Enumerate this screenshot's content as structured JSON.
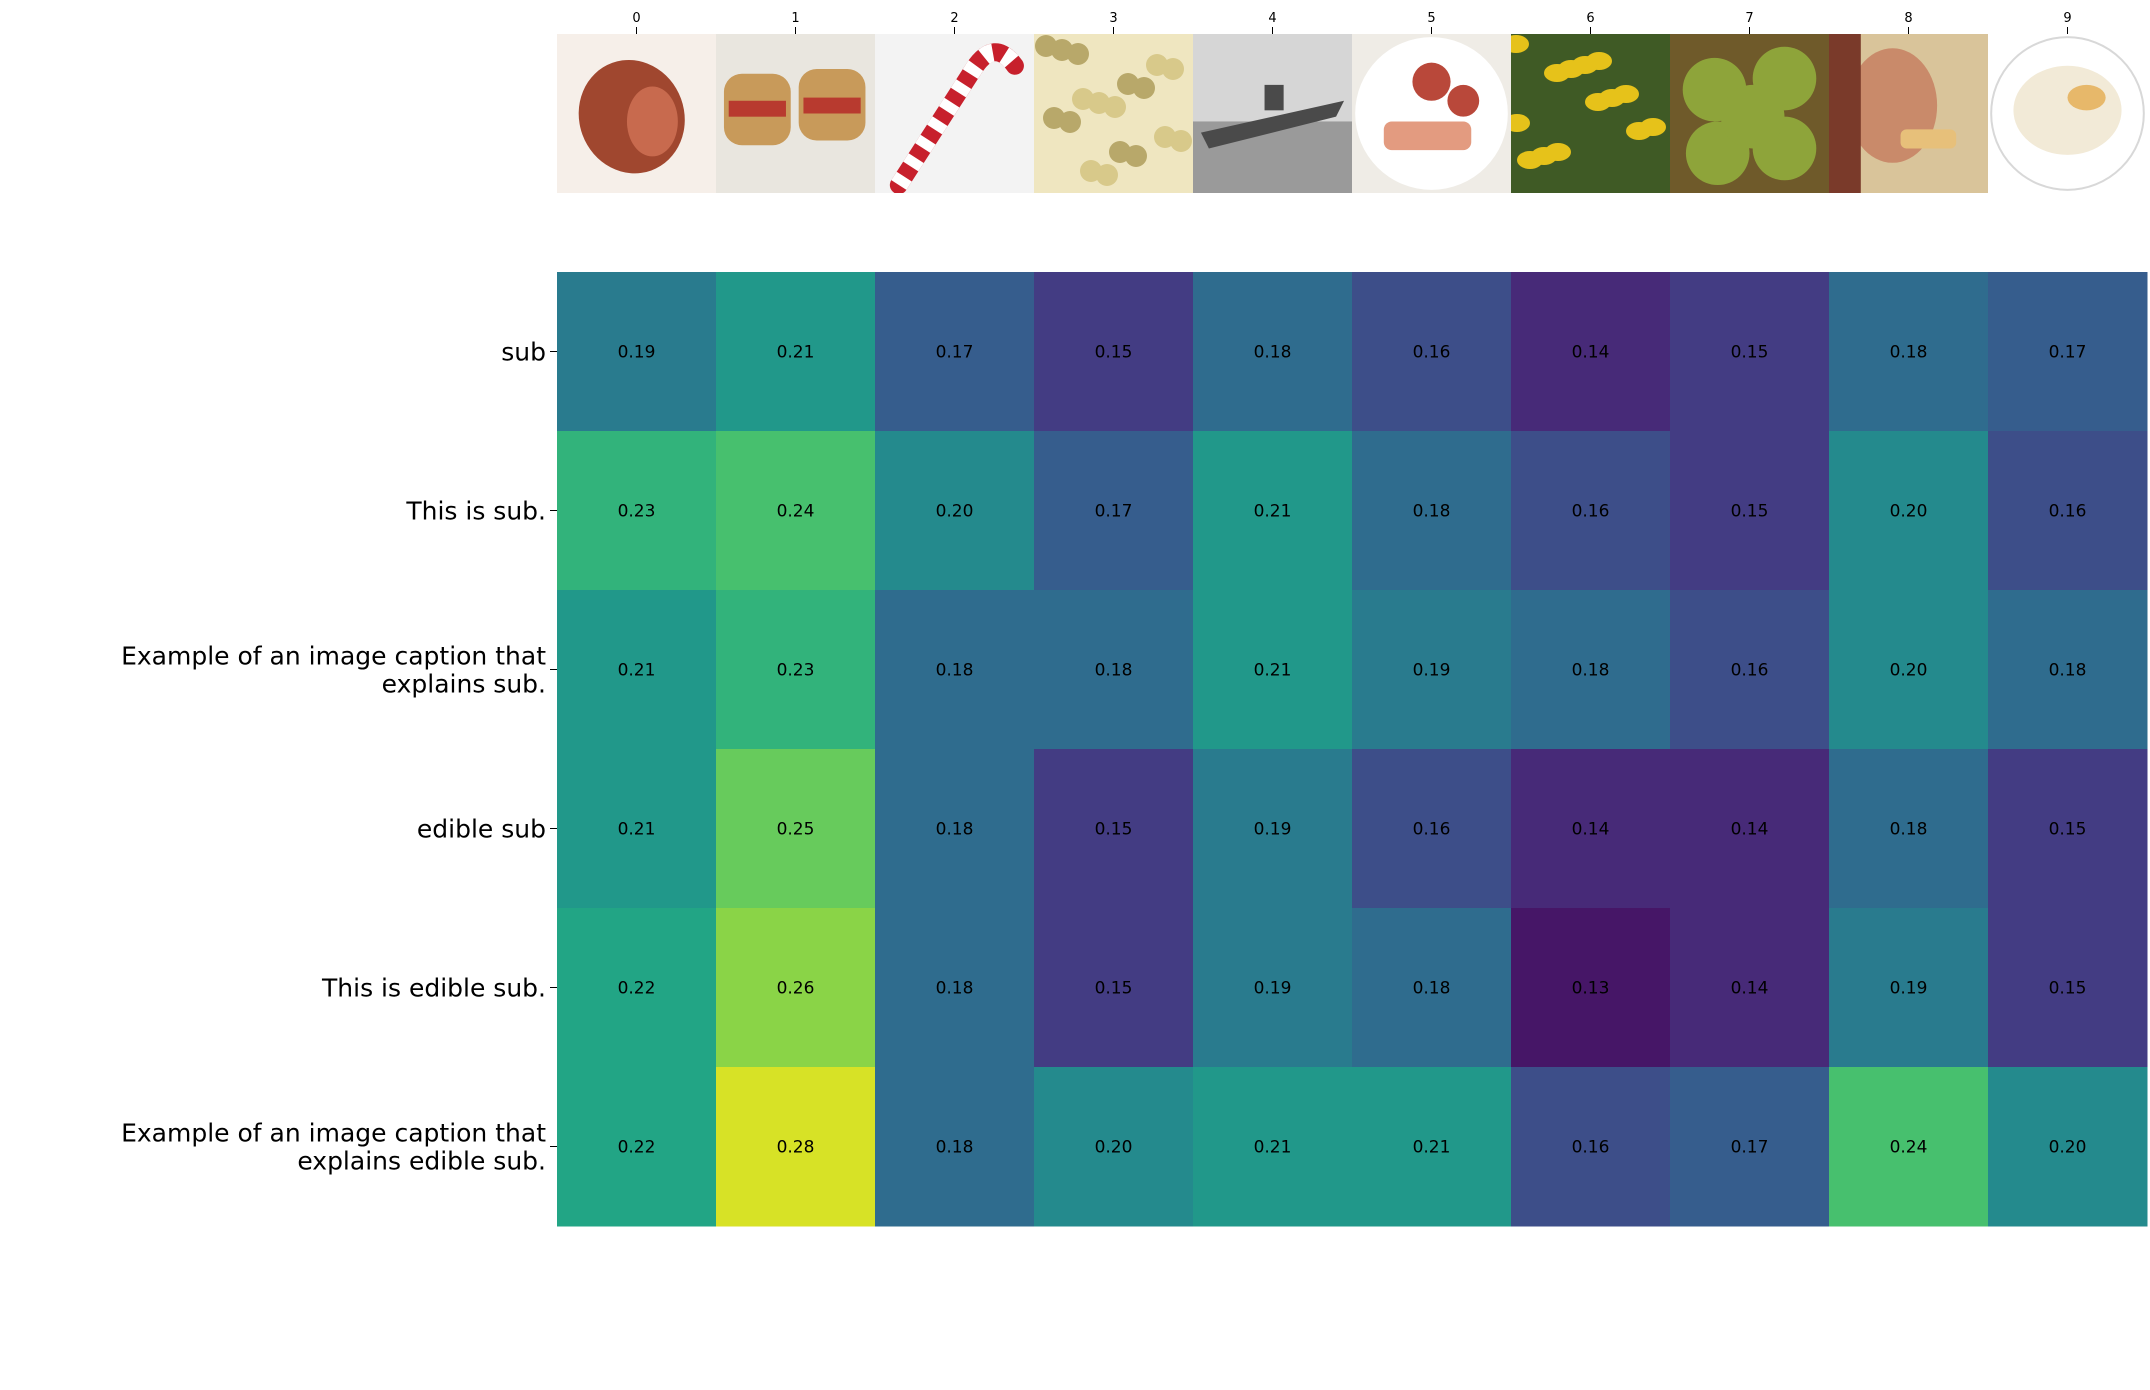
{
  "chart_data": {
    "type": "heatmap",
    "colormap": "viridis",
    "value_format": "2 decimals",
    "color_range": [
      0.12,
      0.29
    ],
    "x": {
      "tick_labels": [
        "0",
        "1",
        "2",
        "3",
        "4",
        "5",
        "6",
        "7",
        "8",
        "9"
      ],
      "images": [
        {
          "index": 0,
          "icon": "ham-thumbnail",
          "colors": [
            "#a0472f",
            "#c86a4e",
            "#f6efe9"
          ]
        },
        {
          "index": 1,
          "icon": "sub-sandwich-thumbnail",
          "colors": [
            "#c89a5a",
            "#b83a2f",
            "#e9e6df"
          ]
        },
        {
          "index": 2,
          "icon": "candy-cane-thumbnail",
          "colors": [
            "#c7202c",
            "#ffffff",
            "#f3f3f3"
          ]
        },
        {
          "index": 3,
          "icon": "pasta-thumbnail",
          "colors": [
            "#d8c98a",
            "#b8a86a",
            "#efe6c0"
          ]
        },
        {
          "index": 4,
          "icon": "submarine-thumbnail",
          "colors": [
            "#4a4a4a",
            "#9a9a9a",
            "#d6d6d6"
          ]
        },
        {
          "index": 5,
          "icon": "cured-meat-plate-thumbnail",
          "colors": [
            "#b9483a",
            "#e39b80",
            "#efece6"
          ]
        },
        {
          "index": 6,
          "icon": "yellow-flowers-thumbnail",
          "colors": [
            "#e6c21a",
            "#5d7a2d",
            "#3f5a25"
          ]
        },
        {
          "index": 7,
          "icon": "apples-basket-thumbnail",
          "colors": [
            "#8ea43a",
            "#6f5a2a",
            "#4d3a1d"
          ]
        },
        {
          "index": 8,
          "icon": "person-eating-thumbnail",
          "colors": [
            "#c98a6a",
            "#7a3a2a",
            "#d9c49a"
          ]
        },
        {
          "index": 9,
          "icon": "sauerkraut-plate-thumbnail",
          "colors": [
            "#f2ead7",
            "#e7b86a",
            "#ffffff"
          ]
        }
      ]
    },
    "y": {
      "tick_labels": [
        "sub",
        "This is sub.",
        "Example of an image caption that explains sub.",
        "edible sub",
        "This is edible sub.",
        "Example of an image caption that explains edible sub."
      ]
    },
    "values": [
      [
        0.19,
        0.21,
        0.17,
        0.15,
        0.18,
        0.16,
        0.14,
        0.15,
        0.18,
        0.17
      ],
      [
        0.23,
        0.24,
        0.2,
        0.17,
        0.21,
        0.18,
        0.16,
        0.15,
        0.2,
        0.16
      ],
      [
        0.21,
        0.23,
        0.18,
        0.18,
        0.21,
        0.19,
        0.18,
        0.16,
        0.2,
        0.18
      ],
      [
        0.21,
        0.25,
        0.18,
        0.15,
        0.19,
        0.16,
        0.14,
        0.14,
        0.18,
        0.15
      ],
      [
        0.22,
        0.26,
        0.18,
        0.15,
        0.19,
        0.18,
        0.13,
        0.14,
        0.19,
        0.15
      ],
      [
        0.22,
        0.28,
        0.18,
        0.2,
        0.21,
        0.21,
        0.16,
        0.17,
        0.24,
        0.2
      ]
    ],
    "title": "",
    "xlabel": "",
    "ylabel": "",
    "grid": false,
    "legend": "none"
  }
}
